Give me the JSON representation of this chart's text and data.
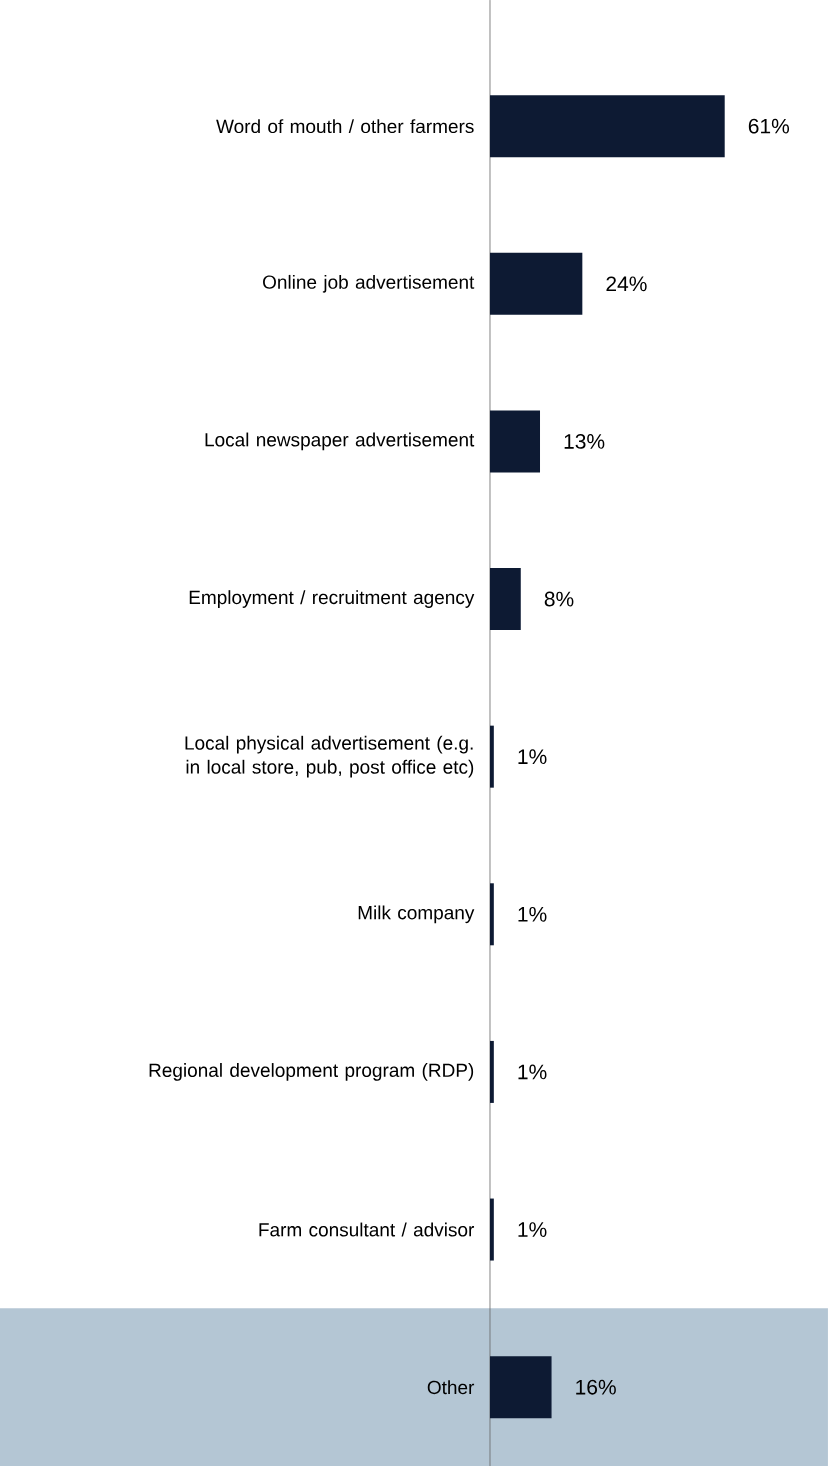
{
  "chart_data": {
    "type": "bar",
    "orientation": "horizontal",
    "data_labels": true,
    "color": "#0d1a33",
    "categories": [
      "Word of mouth / other farmers",
      "Online job advertisement",
      "Local newspaper advertisement",
      "Employment / recruitment agency",
      "Local physical advertisement (e.g. in local store, pub, post office etc)",
      "Milk company",
      "Regional development program (RDP)",
      "Farm consultant / advisor",
      "Other"
    ],
    "values": [
      61,
      24,
      13,
      8,
      1,
      1,
      1,
      1,
      16
    ],
    "value_labels": [
      "61%",
      "24%",
      "13%",
      "8%",
      "1%",
      "1%",
      "1%",
      "1%",
      "16%"
    ],
    "bands": [
      {
        "axis": "y",
        "from": "Other",
        "to": "Other",
        "color": "#b4c6d4"
      }
    ]
  }
}
